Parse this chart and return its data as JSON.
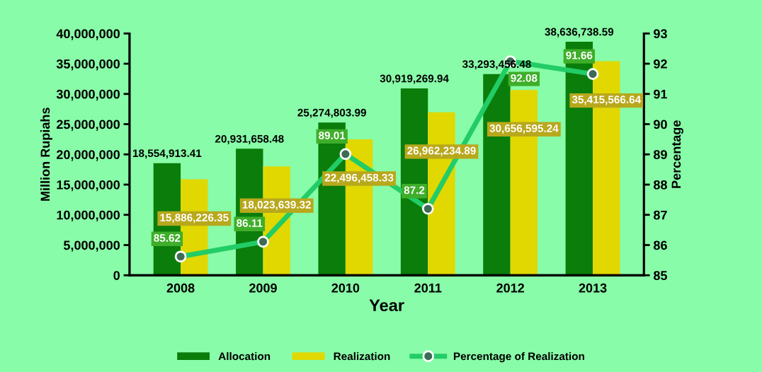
{
  "chart_data": {
    "type": "bar",
    "xlabel": "Year",
    "ylabel": "Million Rupiahs",
    "y2label": "Percentage",
    "categories": [
      "2008",
      "2009",
      "2010",
      "2011",
      "2012",
      "2013"
    ],
    "series": [
      {
        "name": "Allocation",
        "color": "#0a7d0a",
        "values": [
          18554913.41,
          20931658.48,
          25274803.99,
          30919269.94,
          33293456.48,
          38636738.59
        ],
        "value_labels": [
          "18,554,913.41",
          "20,931,658.48",
          "25,274,803.99",
          "30,919,269.94",
          "33,293,456.48",
          "38,636,738.59"
        ]
      },
      {
        "name": "Realization",
        "color": "#e0d800",
        "values": [
          15886226.35,
          18023639.32,
          22496458.33,
          26962234.89,
          30656595.24,
          35415566.64
        ],
        "value_labels": [
          "15,886,226.35",
          "18,023,639.32",
          "22,496,458.33",
          "26,962,234.89",
          "30,656,595.24",
          "35,415,566.64"
        ]
      },
      {
        "name": "Percentage of Realization",
        "type": "line",
        "axis": "y2",
        "color": "#22cc66",
        "marker": "circle",
        "values": [
          85.62,
          86.11,
          89.01,
          87.2,
          92.08,
          91.66
        ],
        "value_labels": [
          "85.62",
          "86.11",
          "89.01",
          "87.2",
          "92.08",
          "91.66"
        ]
      }
    ],
    "ylim": [
      0,
      40000000
    ],
    "yticks": [
      {
        "value": 0,
        "label": "0"
      },
      {
        "value": 5000000,
        "label": "5,000,000"
      },
      {
        "value": 10000000,
        "label": "10,000,000"
      },
      {
        "value": 15000000,
        "label": "15,000,000"
      },
      {
        "value": 20000000,
        "label": "20,000,000"
      },
      {
        "value": 25000000,
        "label": "25,000,000"
      },
      {
        "value": 30000000,
        "label": "30,000,000"
      },
      {
        "value": 35000000,
        "label": "35,000,000"
      },
      {
        "value": 40000000,
        "label": "40,000,000"
      }
    ],
    "y2lim": [
      85,
      93
    ],
    "y2ticks": [
      85,
      86,
      87,
      88,
      89,
      90,
      91,
      92,
      93
    ],
    "grid": false,
    "legend": "bottom"
  }
}
